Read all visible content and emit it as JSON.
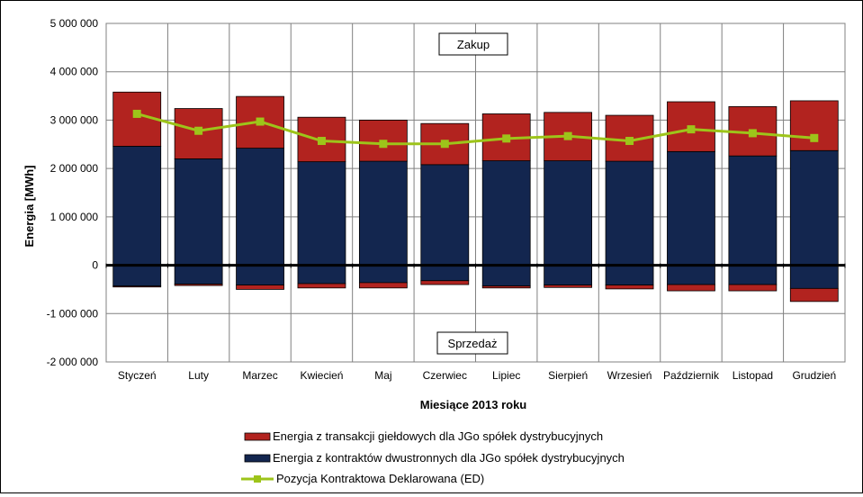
{
  "chart_data": {
    "type": "bar",
    "stacked": true,
    "categories": [
      "Styczeń",
      "Luty",
      "Marzec",
      "Kwiecień",
      "Maj",
      "Czerwiec",
      "Lipiec",
      "Sierpień",
      "Wrzesień",
      "Październik",
      "Listopad",
      "Grudzień"
    ],
    "series": [
      {
        "name": "Energia z transakcji giełdowych dla JGo spółek dystrybucyjnych",
        "kind": "bar",
        "color": "#b2231f",
        "positive": [
          1120000,
          1040000,
          1070000,
          920000,
          850000,
          850000,
          970000,
          1000000,
          950000,
          1030000,
          1020000,
          1030000
        ],
        "negative": [
          -20000,
          -30000,
          -90000,
          -90000,
          -110000,
          -80000,
          -40000,
          -50000,
          -80000,
          -130000,
          -130000,
          -270000
        ]
      },
      {
        "name": "Energia z kontraktów dwustronnych dla JGo spółek dystrybucyjnych",
        "kind": "bar",
        "color": "#13264f",
        "positive": [
          2460000,
          2200000,
          2420000,
          2140000,
          2150000,
          2080000,
          2160000,
          2160000,
          2150000,
          2350000,
          2260000,
          2370000
        ],
        "negative": [
          -430000,
          -390000,
          -410000,
          -380000,
          -360000,
          -320000,
          -430000,
          -410000,
          -410000,
          -400000,
          -400000,
          -480000
        ]
      },
      {
        "name": "Pozycja Kontraktowa Deklarowana (ED)",
        "kind": "line",
        "color": "#9dc41a",
        "values": [
          3130000,
          2780000,
          2970000,
          2570000,
          2510000,
          2510000,
          2620000,
          2670000,
          2570000,
          2810000,
          2730000,
          2630000
        ]
      }
    ],
    "xlabel": "Miesiące 2013  roku",
    "ylabel": "Energia  [MWh]",
    "ylim": [
      -2000000,
      5000000
    ],
    "yticks": [
      5000000,
      4000000,
      3000000,
      2000000,
      1000000,
      0,
      -1000000,
      -2000000
    ],
    "ytick_labels": [
      "5 000 000",
      "4 000 000",
      "3 000 000",
      "2 000 000",
      "1 000 000",
      "0",
      "-1 000 000",
      "-2 000 000"
    ],
    "grid": true,
    "annotations": [
      "Zakup",
      "Sprzedaż"
    ],
    "legend_position": "bottom"
  }
}
